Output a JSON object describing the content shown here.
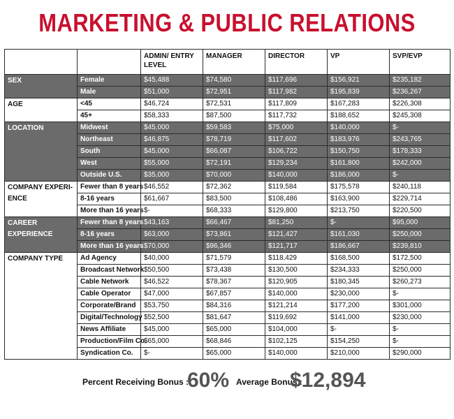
{
  "title": "MARKETING & PUBLIC RELATIONS",
  "table": {
    "headers": [
      "",
      "",
      "ADMIN/ ENTRY LEVEL",
      "MANAGER",
      "DIRECTOR",
      "VP",
      "SVP/EVP"
    ],
    "groups": [
      {
        "category": "SEX",
        "shaded": true,
        "rows": [
          {
            "label": "Female",
            "values": [
              "$45,488",
              "$74,580",
              "$117,696",
              "$156,921",
              "$235,182"
            ]
          },
          {
            "label": "Male",
            "values": [
              "$51,000",
              "$72,951",
              "$117,982",
              "$195,839",
              "$236,267"
            ]
          }
        ]
      },
      {
        "category": "AGE",
        "shaded": false,
        "rows": [
          {
            "label": "<45",
            "values": [
              "$46,724",
              "$72,531",
              "$117,809",
              "$167,283",
              "$226,308"
            ]
          },
          {
            "label": "45+",
            "values": [
              "$58,333",
              "$87,500",
              "$117,732",
              "$188,652",
              "$245,308"
            ]
          }
        ]
      },
      {
        "category": "LOCATION",
        "shaded": true,
        "rows": [
          {
            "label": "Midwest",
            "values": [
              "$45,000",
              "$59,583",
              "$75,000",
              "$140,000",
              "$-"
            ]
          },
          {
            "label": "Northeast",
            "values": [
              "$46,875",
              "$78,719",
              "$117,602",
              "$183,976",
              "$243,765"
            ]
          },
          {
            "label": "South",
            "values": [
              "$45,000",
              "$66,087",
              "$106,722",
              "$150,750",
              "$178,333"
            ]
          },
          {
            "label": "West",
            "values": [
              "$55,000",
              "$72,191",
              "$129,234",
              "$161,800",
              "$242,000"
            ]
          },
          {
            "label": "Outside U.S.",
            "values": [
              "$35,000",
              "$70,000",
              "$140,000",
              "$186,000",
              "$-"
            ]
          }
        ]
      },
      {
        "category": "COMPANY EXPERI-ENCE",
        "shaded": false,
        "rows": [
          {
            "label": "Fewer than 8 years",
            "values": [
              "$46,552",
              "$72,362",
              "$119,584",
              "$175,578",
              "$240,118"
            ]
          },
          {
            "label": "8-16 years",
            "values": [
              "$61,667",
              "$83,500",
              "$108,486",
              "$163,900",
              "$229,714"
            ]
          },
          {
            "label": "More than 16 years",
            "values": [
              "$-",
              "$68,333",
              "$129,800",
              "$213,750",
              "$220,500"
            ]
          }
        ]
      },
      {
        "category": "CAREER EXPERIENCE",
        "shaded": true,
        "rows": [
          {
            "label": "Fewer than 8 years",
            "values": [
              "$43,163",
              "$66,467",
              "$81,250",
              "$-",
              "$95,000"
            ]
          },
          {
            "label": "8-16 years",
            "values": [
              "$63,000",
              "$73,861",
              "$121,427",
              "$161,030",
              "$250,000"
            ]
          },
          {
            "label": "More than 16 years",
            "values": [
              "$70,000",
              "$96,346",
              "$121,717",
              "$186,667",
              "$239,810"
            ]
          }
        ]
      },
      {
        "category": "COMPANY TYPE",
        "shaded": false,
        "rows": [
          {
            "label": "Ad Agency",
            "values": [
              "$40,000",
              "$71,579",
              "$118,429",
              "$168,500",
              "$172,500"
            ]
          },
          {
            "label": "Broadcast Network",
            "values": [
              "$50,500",
              "$73,438",
              "$130,500",
              "$234,333",
              "$250,000"
            ]
          },
          {
            "label": "Cable Network",
            "values": [
              "$46,522",
              "$78,367",
              "$120,905",
              "$180,345",
              "$260,273"
            ]
          },
          {
            "label": "Cable Operator",
            "values": [
              "$47,000",
              "$67,857",
              "$140,000",
              "$230,000",
              "$-"
            ]
          },
          {
            "label": "Corporate/Brand",
            "values": [
              "$53,750",
              "$84,316",
              "$121,214",
              "$177,200",
              "$301,000"
            ]
          },
          {
            "label": "Digital/Technology",
            "values": [
              "$52,500",
              "$81,647",
              "$119,692",
              "$141,000",
              "$230,000"
            ]
          },
          {
            "label": "News Affiliate",
            "values": [
              "$45,000",
              "$65,000",
              "$104,000",
              "$-",
              "$-"
            ]
          },
          {
            "label": "Production/Film Co.",
            "values": [
              "$65,000",
              "$68,846",
              "$102,125",
              "$154,250",
              "$-"
            ]
          },
          {
            "label": "Syndication Co.",
            "values": [
              "$-",
              "$65,000",
              "$140,000",
              "$210,000",
              "$290,000"
            ]
          }
        ]
      }
    ]
  },
  "stats": {
    "bonus_percent_label": "Percent Receiving Bonus :",
    "bonus_percent_value": "60%",
    "avg_bonus_label": "Average Bonus :",
    "avg_bonus_value": "$12,894"
  }
}
